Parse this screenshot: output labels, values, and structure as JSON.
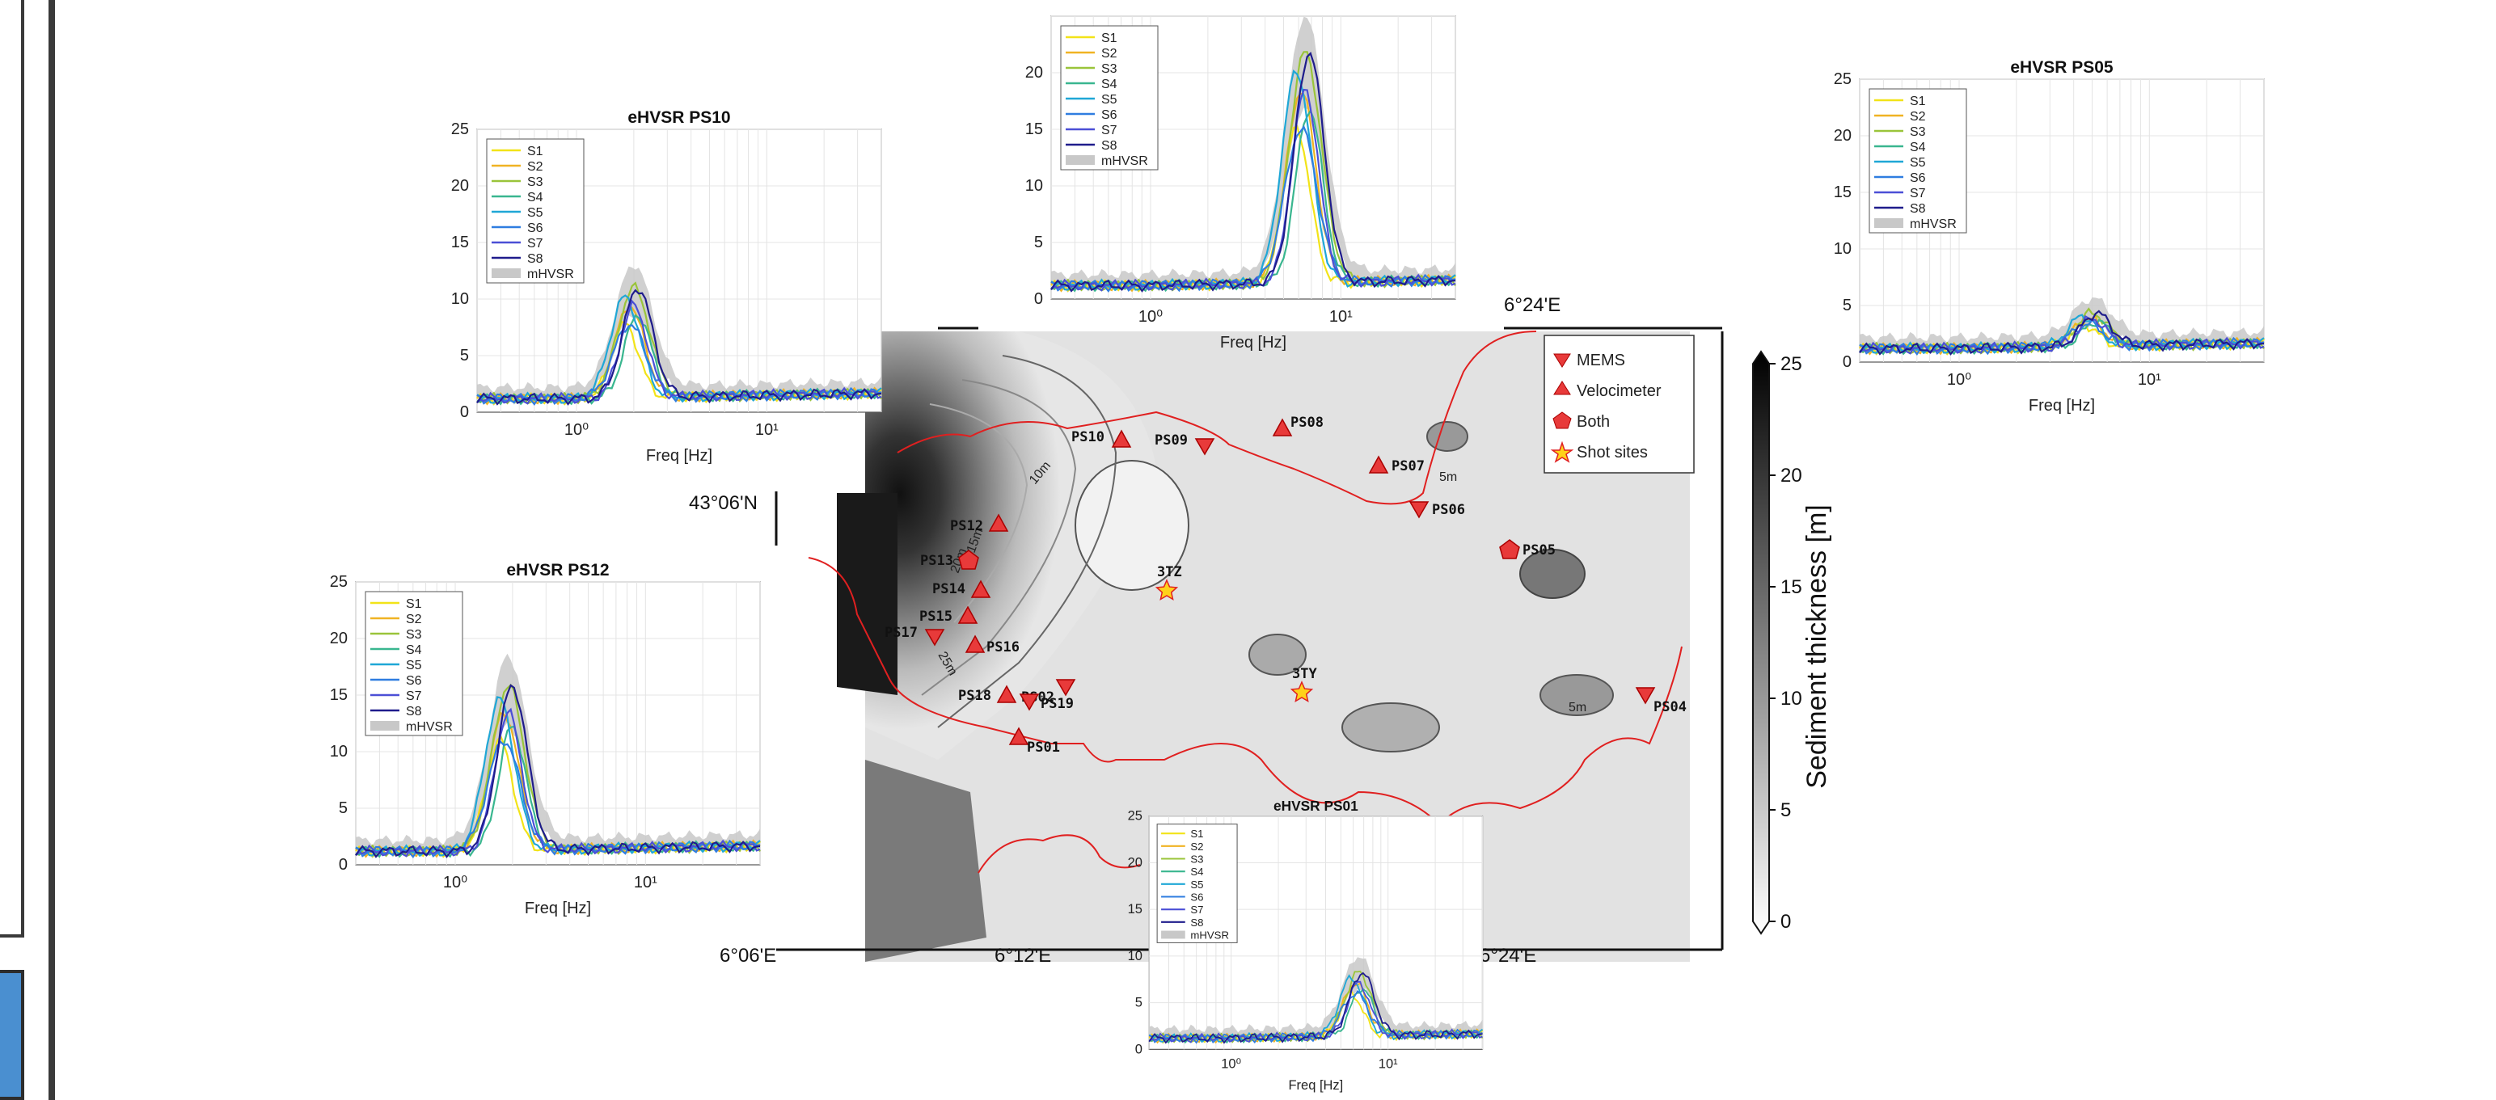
{
  "map": {
    "lon_labels": [
      "6°06'E",
      "6°12'E",
      "6°24'E"
    ],
    "top_lon_label": "6°24'E",
    "lat_label": "43°06'N",
    "contour_labels": [
      "5m",
      "10m",
      "15m",
      "20m",
      "25m",
      "5m"
    ],
    "legend": [
      {
        "symbol": "triangle-down",
        "label": "MEMS"
      },
      {
        "symbol": "triangle-up",
        "label": "Velocimeter"
      },
      {
        "symbol": "pentagon",
        "label": "Both"
      },
      {
        "symbol": "star",
        "label": "Shot sites"
      }
    ],
    "stations": [
      {
        "id": "PS01",
        "type": "velocimeter"
      },
      {
        "id": "PS02",
        "type": "mems"
      },
      {
        "id": "PS04",
        "type": "mems"
      },
      {
        "id": "PS05",
        "type": "both"
      },
      {
        "id": "PS06",
        "type": "mems"
      },
      {
        "id": "PS07",
        "type": "velocimeter"
      },
      {
        "id": "PS08",
        "type": "velocimeter"
      },
      {
        "id": "PS09",
        "type": "mems"
      },
      {
        "id": "PS10",
        "type": "velocimeter"
      },
      {
        "id": "PS12",
        "type": "velocimeter"
      },
      {
        "id": "PS13",
        "type": "both"
      },
      {
        "id": "PS14",
        "type": "velocimeter"
      },
      {
        "id": "PS15",
        "type": "velocimeter"
      },
      {
        "id": "PS16",
        "type": "velocimeter"
      },
      {
        "id": "PS17",
        "type": "mems"
      },
      {
        "id": "PS18",
        "type": "velocimeter"
      },
      {
        "id": "PS19",
        "type": "mems"
      }
    ],
    "shots": [
      "3TZ",
      "3TY"
    ],
    "colorbar": {
      "label": "Sediment thickness [m]",
      "ticks": [
        "25",
        "20",
        "15",
        "10",
        "5",
        "0"
      ]
    }
  },
  "chart_data": [
    {
      "type": "line",
      "title": "eHVSR PS10",
      "xlabel": "Freq [Hz]",
      "x_scale": "log",
      "xlim": [
        0.3,
        40
      ],
      "ylim": [
        0,
        25
      ],
      "yticks": [
        "0",
        "5",
        "10",
        "15",
        "20",
        "25"
      ],
      "xticks": [
        "10⁰",
        "10¹"
      ],
      "legend": [
        "S1",
        "S2",
        "S3",
        "S4",
        "S5",
        "S6",
        "S7",
        "S8",
        "mHVSR"
      ],
      "peak_freq": 2.0,
      "peak_amp": 10
    },
    {
      "type": "line",
      "title": "eHVSR PS12",
      "xlabel": "Freq [Hz]",
      "x_scale": "log",
      "xlim": [
        0.3,
        40
      ],
      "ylim": [
        0,
        25
      ],
      "yticks": [
        "0",
        "5",
        "10",
        "15",
        "20",
        "25"
      ],
      "xticks": [
        "10⁰",
        "10¹"
      ],
      "legend": [
        "S1",
        "S2",
        "S3",
        "S4",
        "S5",
        "S6",
        "S7",
        "S8",
        "mHVSR"
      ],
      "peak_freq": 1.9,
      "peak_amp": 15
    },
    {
      "type": "line",
      "title": "",
      "xlabel": "Freq [Hz]",
      "x_scale": "log",
      "xlim": [
        0.3,
        40
      ],
      "ylim": [
        0,
        25
      ],
      "yticks": [
        "0",
        "5",
        "10",
        "15",
        "20"
      ],
      "xticks": [
        "10⁰",
        "10¹"
      ],
      "legend": [
        "S1",
        "S2",
        "S3",
        "S4",
        "S5",
        "S6",
        "S7",
        "S8",
        "mHVSR"
      ],
      "peak_freq": 6.5,
      "peak_amp": 21
    },
    {
      "type": "line",
      "title": "eHVSR PS05",
      "xlabel": "Freq [Hz]",
      "x_scale": "log",
      "xlim": [
        0.3,
        40
      ],
      "ylim": [
        0,
        25
      ],
      "yticks": [
        "0",
        "5",
        "10",
        "15",
        "20",
        "25"
      ],
      "xticks": [
        "10⁰",
        "10¹"
      ],
      "legend": [
        "S1",
        "S2",
        "S3",
        "S4",
        "S5",
        "S6",
        "S7",
        "S8",
        "mHVSR"
      ],
      "peak_freq": 5.0,
      "peak_amp": 3
    },
    {
      "type": "line",
      "title": "eHVSR PS01",
      "xlabel": "Freq [Hz]",
      "x_scale": "log",
      "xlim": [
        0.3,
        40
      ],
      "ylim": [
        0,
        25
      ],
      "yticks": [
        "0",
        "5",
        "10",
        "15",
        "20",
        "25"
      ],
      "xticks": [
        "10⁰",
        "10¹"
      ],
      "legend": [
        "S1",
        "S2",
        "S3",
        "S4",
        "S5",
        "S6",
        "S7",
        "S8",
        "mHVSR"
      ],
      "peak_freq": 6.5,
      "peak_amp": 7
    }
  ],
  "series_colors": [
    "#f2e318",
    "#f0b323",
    "#9ac43a",
    "#39b68f",
    "#1fa7d6",
    "#2f7de0",
    "#4b4fd6",
    "#1f1c8c"
  ],
  "mhvsr_color": "#c8c8c8",
  "marker_color": "#e83a3a"
}
